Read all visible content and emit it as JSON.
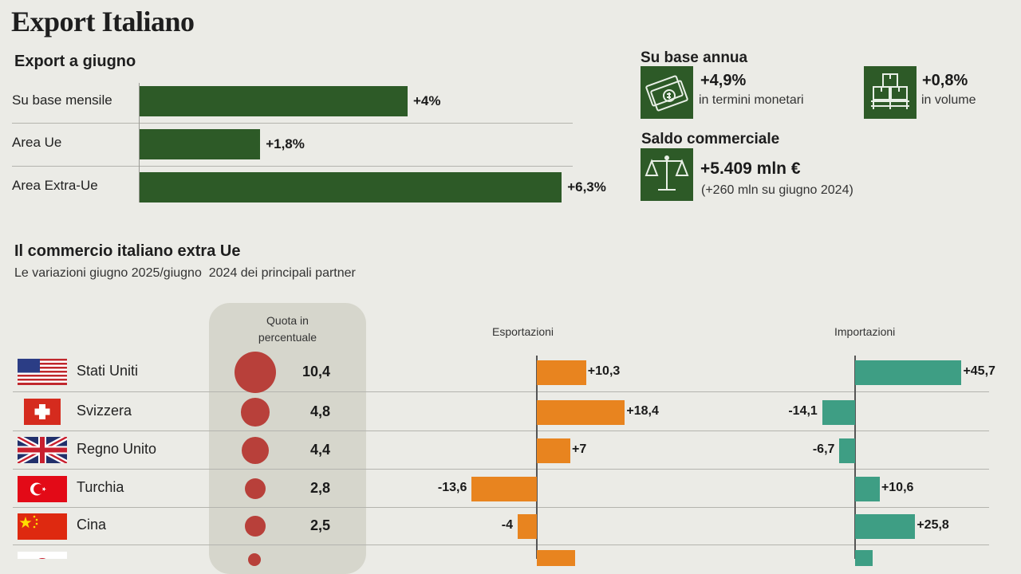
{
  "title": "Export Italiano",
  "colors": {
    "green": "#2d5a27",
    "orange": "#e8841f",
    "teal": "#3e9e84",
    "dot": "#b8403a",
    "background": "#ebebe6"
  },
  "export_giugno": {
    "heading": "Export a giugno",
    "rows": [
      {
        "label": "Su base mensile",
        "value": "+4%"
      },
      {
        "label": "Area Ue",
        "value": "+1,8%"
      },
      {
        "label": "Area Extra-Ue",
        "value": "+6,3%"
      }
    ]
  },
  "base_annua": {
    "heading": "Su base annua",
    "monetari": {
      "value": "+4,9%",
      "desc": "in termini monetari",
      "icon": "banknotes-icon"
    },
    "volume": {
      "value": "+0,8%",
      "desc": "in volume",
      "icon": "pallet-boxes-icon"
    }
  },
  "saldo": {
    "heading": "Saldo commerciale",
    "value": "+5.409 mln €",
    "desc": "(+260 mln su giugno 2024)",
    "icon": "balance-scale-icon"
  },
  "extra_ue": {
    "heading": "Il commercio italiano extra Ue",
    "subheading": "Le variazioni giugno 2025/giugno  2024 dei principali partner",
    "quota_header_line1": "Quota in",
    "quota_header_line2": "percentuale",
    "export_header": "Esportazioni",
    "import_header": "Importazioni"
  },
  "chart_data": [
    {
      "type": "bar",
      "title": "Export a giugno",
      "categories": [
        "Su base mensile",
        "Area Ue",
        "Area Extra-Ue"
      ],
      "values": [
        4,
        1.8,
        6.3
      ],
      "value_labels": [
        "+4%",
        "+1,8%",
        "+6,3%"
      ],
      "unit": "%"
    },
    {
      "type": "bar",
      "title": "Il commercio italiano extra Ue",
      "subtitle": "Le variazioni giugno 2025/giugno  2024 dei principali partner",
      "categories": [
        "Stati Uniti",
        "Svizzera",
        "Regno Unito",
        "Turchia",
        "Cina"
      ],
      "quota_percentuale": [
        10.4,
        4.8,
        4.4,
        2.8,
        2.5
      ],
      "quota_labels": [
        "10,4",
        "4,8",
        "4,4",
        "2,8",
        "2,5"
      ],
      "series": [
        {
          "name": "Esportazioni",
          "values": [
            10.3,
            18.4,
            7,
            -13.6,
            -4
          ],
          "labels": [
            "+10,3",
            "+18,4",
            "+7",
            "-13,6",
            "-4"
          ]
        },
        {
          "name": "Importazioni",
          "values": [
            45.7,
            -14.1,
            -6.7,
            10.6,
            25.8
          ],
          "labels": [
            "+45,7",
            "-14,1",
            "-6,7",
            "+10,6",
            "+25,8"
          ]
        }
      ]
    }
  ]
}
